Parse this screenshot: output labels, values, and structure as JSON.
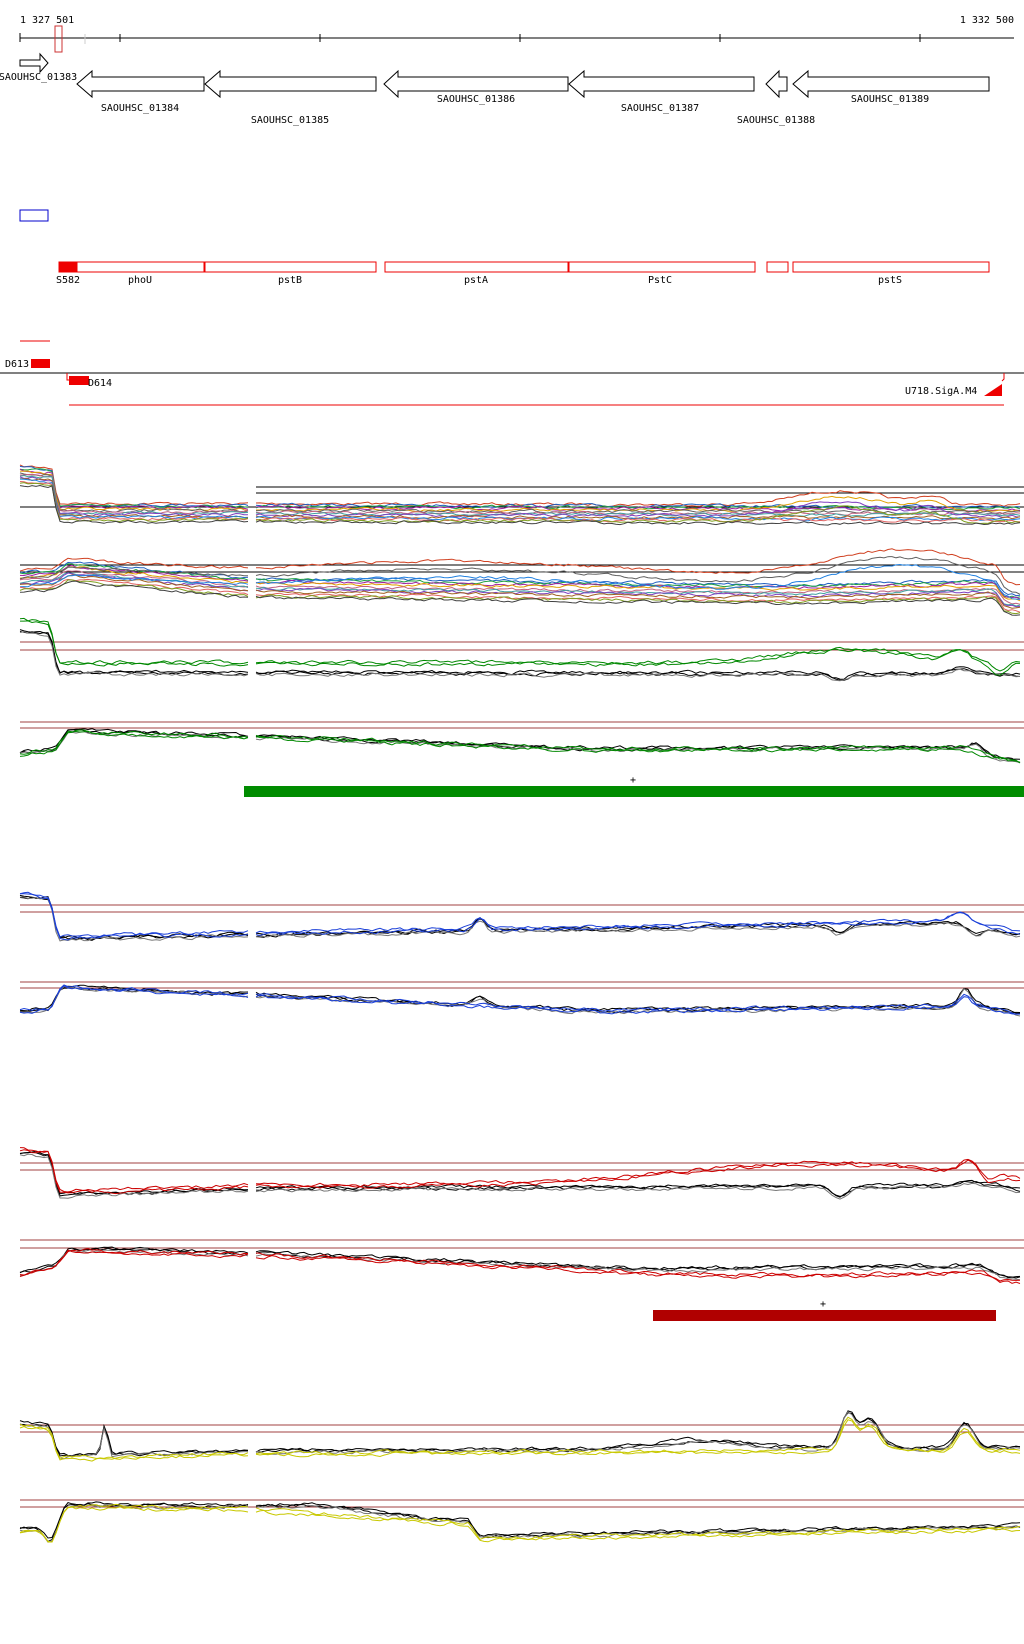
{
  "coordinates": {
    "start_label": "1 327 501",
    "end_label": "1 332 500"
  },
  "genes": [
    {
      "id": "SAOUHSC_01383",
      "strand": "+"
    },
    {
      "id": "SAOUHSC_01384",
      "strand": "-"
    },
    {
      "id": "SAOUHSC_01385",
      "strand": "-"
    },
    {
      "id": "SAOUHSC_01386",
      "strand": "-"
    },
    {
      "id": "SAOUHSC_01387",
      "strand": "-"
    },
    {
      "id": "SAOUHSC_01388",
      "strand": "-"
    },
    {
      "id": "SAOUHSC_01389",
      "strand": "-"
    }
  ],
  "gene_names": [
    "S582",
    "phoU",
    "pstB",
    "pstA",
    "PstC",
    "pstS"
  ],
  "transcription_units": [
    "D613",
    "D614",
    "U718.SigA.M4"
  ],
  "colors": {
    "axis": "#000000",
    "gene_outline": "#000000",
    "annotation": "#ee0000",
    "blue_box": "#0000cc",
    "threshold": "#a04040",
    "green": "#008800",
    "green_bar": "#008c00",
    "blue": "#1a3fd8",
    "red": "#cc0000",
    "red_bar": "#b00000",
    "yellow": "#c8c800"
  },
  "significance_markers": [
    "+",
    "+"
  ]
}
